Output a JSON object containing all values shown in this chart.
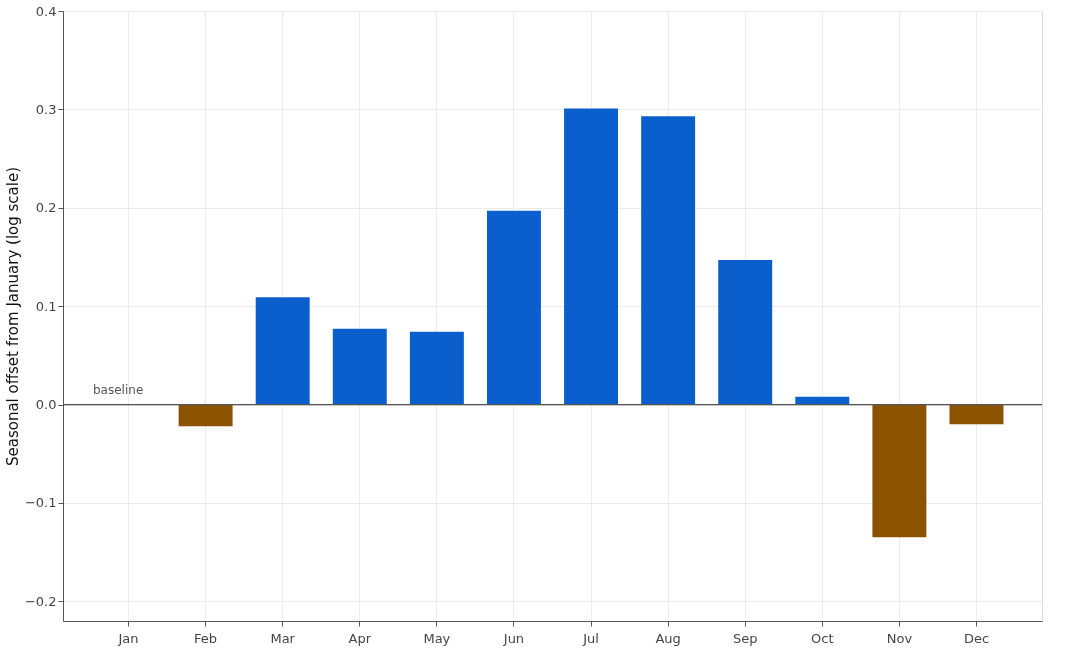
{
  "chart_data": {
    "type": "bar",
    "ylabel": "Seasonal offset from January (log scale)",
    "categories": [
      "Jan",
      "Feb",
      "Mar",
      "Apr",
      "May",
      "Jun",
      "Jul",
      "Aug",
      "Sep",
      "Oct",
      "Nov",
      "Dec"
    ],
    "values": [
      0,
      -0.022,
      0.109,
      0.077,
      0.074,
      0.197,
      0.301,
      0.293,
      0.147,
      0.008,
      -0.135,
      -0.02
    ],
    "colors": [
      "#0b5fcc",
      "#8b5300",
      "#0b5fcc",
      "#0b5fcc",
      "#0b5fcc",
      "#0b5fcc",
      "#0b5fcc",
      "#0b5fcc",
      "#0b5fcc",
      "#0b5fcc",
      "#8b5300",
      "#8b5300"
    ],
    "ylim": [
      -0.22,
      0.4
    ],
    "yticks": [
      -0.2,
      -0.1,
      {
        "value": 0,
        "label": "0.0"
      },
      0.1,
      0.2,
      0.3,
      0.4
    ],
    "ref_lines": [
      {
        "axis": "y",
        "value": 0,
        "label": "baseline",
        "color": "#555555"
      }
    ],
    "grid": true
  }
}
